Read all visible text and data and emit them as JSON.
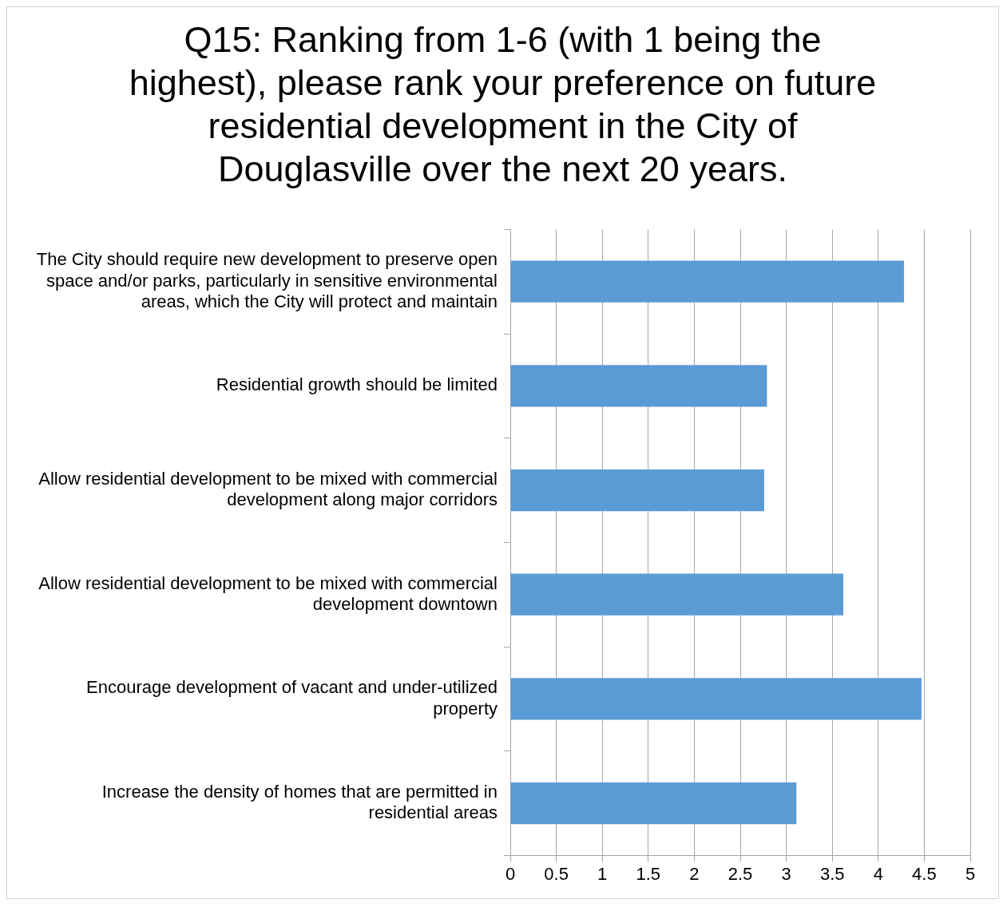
{
  "chart_data": {
    "type": "bar",
    "orientation": "horizontal",
    "title": "Q15: Ranking from 1-6 (with 1 being the highest), please rank your preference on future residential development in the City of Douglasville over the next 20 years.",
    "categories": [
      "The City should require new development to preserve open space and/or parks, particularly in sensitive environmental areas, which the City will protect and maintain",
      "Residential growth should be limited",
      "Allow residential development to be mixed with commercial development along major corridors",
      "Allow residential development to be mixed with commercial development downtown",
      "Encourage development of vacant and under-utilized property",
      "Increase the density of homes that are permitted in residential areas"
    ],
    "values": [
      4.28,
      2.79,
      2.76,
      3.62,
      4.47,
      3.11
    ],
    "color": "#5b9bd5",
    "xlim": [
      0,
      5
    ],
    "xticks": [
      0,
      0.5,
      1,
      1.5,
      2,
      2.5,
      3,
      3.5,
      4,
      4.5,
      5
    ],
    "grid": "x"
  }
}
